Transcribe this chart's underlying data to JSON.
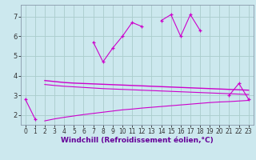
{
  "xlabel": "Windchill (Refroidissement éolien,°C)",
  "background_color": "#cce8ee",
  "grid_color": "#aacccc",
  "line_color": "#cc00cc",
  "segments_main": [
    {
      "x": [
        0,
        1
      ],
      "y": [
        2.8,
        1.8
      ]
    },
    {
      "x": [
        7,
        8,
        9,
        10,
        11,
        12
      ],
      "y": [
        5.7,
        4.7,
        5.4,
        6.0,
        6.7,
        6.5
      ]
    },
    {
      "x": [
        14,
        15,
        16,
        17,
        18
      ],
      "y": [
        6.8,
        7.1,
        6.0,
        7.1,
        6.3
      ]
    },
    {
      "x": [
        21,
        22,
        23
      ],
      "y": [
        3.0,
        3.6,
        2.8
      ]
    }
  ],
  "x_upper": [
    2,
    3,
    4,
    5,
    6,
    7,
    8,
    9,
    10,
    11,
    12,
    13,
    14,
    15,
    16,
    17,
    18,
    19,
    20,
    21,
    22,
    23
  ],
  "y_upper": [
    3.75,
    3.7,
    3.65,
    3.62,
    3.6,
    3.58,
    3.56,
    3.54,
    3.52,
    3.5,
    3.48,
    3.46,
    3.44,
    3.42,
    3.4,
    3.38,
    3.36,
    3.34,
    3.32,
    3.3,
    3.28,
    3.26
  ],
  "x_mid": [
    2,
    3,
    4,
    5,
    6,
    7,
    8,
    9,
    10,
    11,
    12,
    13,
    14,
    15,
    16,
    17,
    18,
    19,
    20,
    21,
    22,
    23
  ],
  "y_mid": [
    3.55,
    3.5,
    3.46,
    3.43,
    3.4,
    3.37,
    3.34,
    3.32,
    3.3,
    3.28,
    3.26,
    3.24,
    3.22,
    3.2,
    3.18,
    3.16,
    3.14,
    3.12,
    3.1,
    3.08,
    3.06,
    3.04
  ],
  "x_lower": [
    2,
    3,
    4,
    5,
    6,
    7,
    8,
    9,
    10,
    11,
    12,
    13,
    14,
    15,
    16,
    17,
    18,
    19,
    20,
    21,
    22,
    23
  ],
  "y_lower": [
    1.7,
    1.8,
    1.88,
    1.95,
    2.02,
    2.08,
    2.14,
    2.2,
    2.26,
    2.3,
    2.35,
    2.39,
    2.43,
    2.47,
    2.51,
    2.55,
    2.59,
    2.63,
    2.66,
    2.68,
    2.71,
    2.74
  ],
  "ylim": [
    1.5,
    7.6
  ],
  "xlim": [
    -0.5,
    23.5
  ],
  "yticks": [
    2,
    3,
    4,
    5,
    6,
    7
  ],
  "xticks": [
    0,
    1,
    2,
    3,
    4,
    5,
    6,
    7,
    8,
    9,
    10,
    11,
    12,
    13,
    14,
    15,
    16,
    17,
    18,
    19,
    20,
    21,
    22,
    23
  ],
  "tick_fontsize": 5.5,
  "xlabel_fontsize": 6.5
}
